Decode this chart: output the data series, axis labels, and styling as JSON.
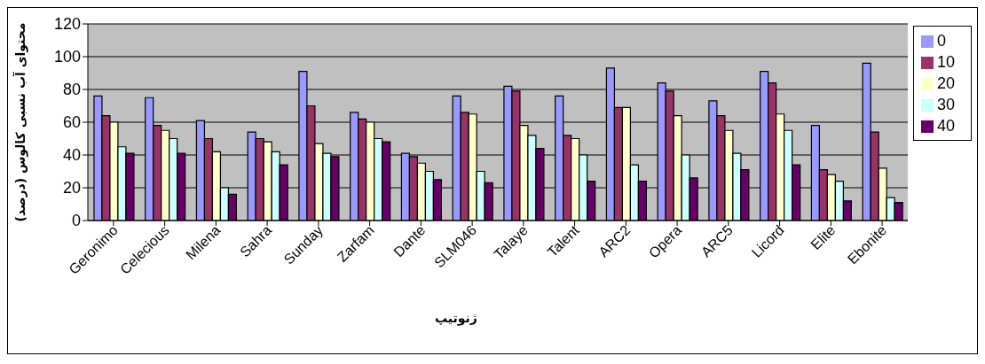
{
  "chart_data": {
    "type": "bar",
    "xlabel": "ژنوتیپ",
    "ylabel": "محتوای آب نسبی کالوس (درصد)",
    "categories": [
      "Geronimo",
      "Celecious",
      "Milena",
      "Sahra",
      "Sunday",
      "Zarfam",
      "Dante",
      "SLM046",
      "Talaye",
      "Talent",
      "ARC2",
      "Opera",
      "ARC5",
      "Licord",
      "Elite",
      "Ebonite"
    ],
    "series": [
      {
        "name": "0",
        "color": "#9999ff",
        "values": [
          76,
          75,
          61,
          54,
          91,
          66,
          41,
          76,
          82,
          76,
          93,
          84,
          73,
          91,
          58,
          96
        ]
      },
      {
        "name": "10",
        "color": "#993366",
        "values": [
          64,
          58,
          50,
          50,
          70,
          62,
          39,
          66,
          79,
          52,
          69,
          79,
          64,
          84,
          31,
          54
        ]
      },
      {
        "name": "20",
        "color": "#ffffcc",
        "values": [
          60,
          55,
          42,
          48,
          47,
          60,
          35,
          65,
          58,
          50,
          69,
          64,
          55,
          65,
          28,
          32
        ]
      },
      {
        "name": "30",
        "color": "#ccffff",
        "values": [
          45,
          50,
          20,
          42,
          41,
          50,
          30,
          30,
          52,
          40,
          34,
          40,
          41,
          55,
          24,
          14
        ]
      },
      {
        "name": "40",
        "color": "#660066",
        "values": [
          41,
          41,
          16,
          34,
          39,
          48,
          25,
          23,
          44,
          24,
          24,
          26,
          31,
          34,
          12,
          11
        ]
      }
    ],
    "ylim": [
      0,
      120
    ],
    "yticks": [
      0,
      20,
      40,
      60,
      80,
      100,
      120
    ],
    "grid": "y",
    "legend": "right"
  }
}
